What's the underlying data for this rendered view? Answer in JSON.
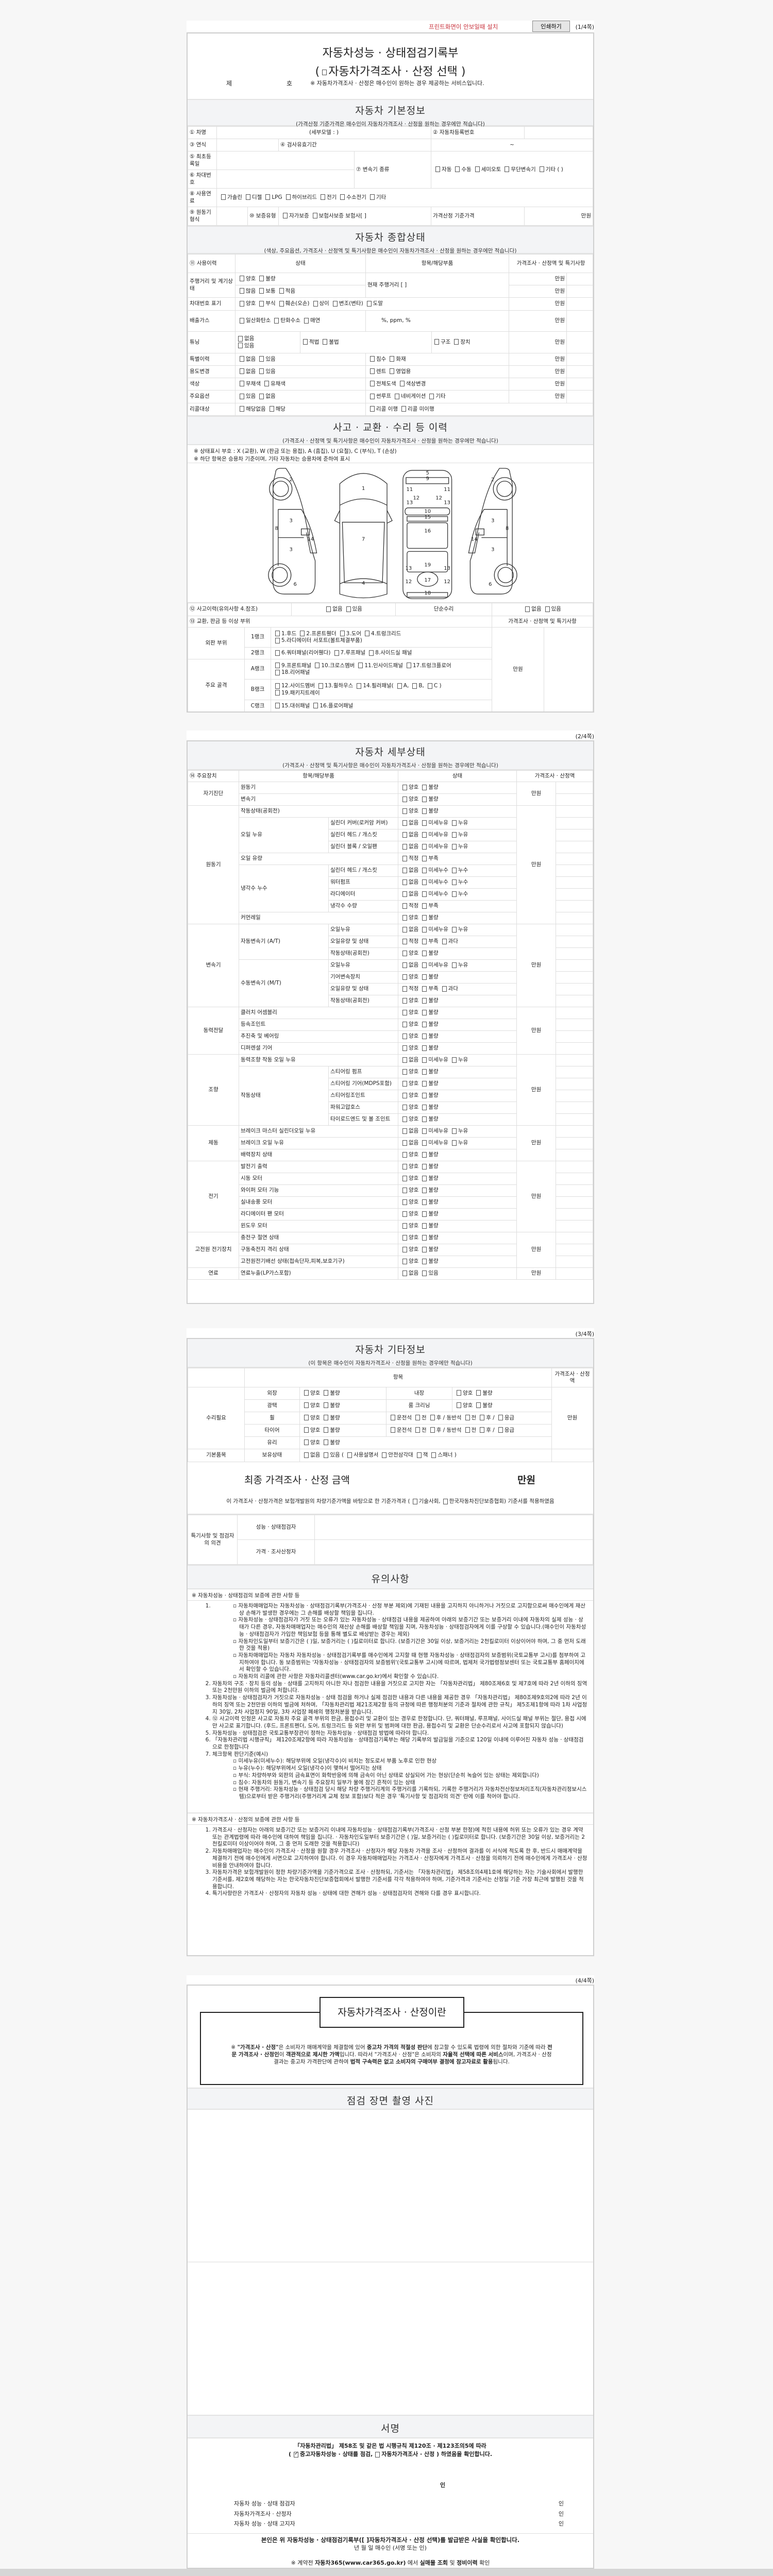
{
  "toolbar": {
    "notice": "프린트화면이 안보일때 설치",
    "print_button": "인쇄하기",
    "page": "(1/4쪽)"
  },
  "colors": {
    "notice": "#c8323c",
    "section_bg": "#f3f4f6",
    "border": "#cfcfcf"
  },
  "option_sets": {
    "good_bad": [
      "양호",
      "불량"
    ],
    "leak_oil": [
      "없음",
      "미세누유",
      "누유"
    ],
    "leak_water": [
      "없음",
      "미세누수",
      "누수"
    ],
    "level": [
      "적정",
      "부족"
    ],
    "level3": [
      "적정",
      "부족",
      "과다"
    ],
    "none_some": [
      "없음",
      "있음"
    ]
  },
  "header": {
    "title": "자동차성능 · 상태점검기록부",
    "subtitle_open": "(",
    "subtitle": "자동차가격조사 · 산정 선택",
    "subtitle_close": ")",
    "no_prefix": "제",
    "no_suffix": "호",
    "note": "※ 자동차가격조사 · 산정은 매수인이 원하는 경우 제공하는 서비스입니다."
  },
  "basic": {
    "title": "자동차 기본정보",
    "sub": "(가격산정 기준가격은 매수인이 자동차가격조사 · 산정을 원하는 경우에만 적습니다)",
    "car_name": "① 차명",
    "sub_model": "(세부모델 :                    )",
    "reg_no": "② 자동차등록번호",
    "year": "③ 연식",
    "inspection": "④ 검사유효기간",
    "inspection_range": "~",
    "first_reg": "⑤ 최초등록일",
    "vin": "⑥ 차대번호",
    "transmission": "⑦ 변속기 종류",
    "transmission_opts": [
      "자동",
      "수동",
      "세미오토",
      "무단변속기",
      "기타 (          )"
    ],
    "fuel": "⑧ 사용연료",
    "fuel_opts": [
      "가솔린",
      "디젤",
      "LPG",
      "하이브리드",
      "전기",
      "수소전기",
      "기타"
    ],
    "engine": "⑨ 원동기형식",
    "warranty": "⑩ 보증유형",
    "warranty_opts": [
      "자가보증",
      "보험사보증 보험사[                ]"
    ],
    "base_price": "가격산정 기준가격",
    "unit": "만원"
  },
  "overall": {
    "title": "자동차 종합상태",
    "sub": "(색상, 주요옵션, 가격조사 · 산정액 및 특기사항은 매수인이 자동차가격조사 · 산정을 원하는 경우에만 적습니다)",
    "cols": [
      "⑪ 사용이력",
      "상태",
      "항목/해당부품",
      "가격조사 · 산정액 및 특기사항"
    ],
    "unit": "만원",
    "mileage": {
      "label": "주행거리 및 계기상태",
      "opts1": [
        "양호",
        "불량"
      ],
      "opts2": [
        "많음",
        "보통",
        "적음"
      ],
      "item": "현재 주행거리 [                    ]"
    },
    "vin_mark": {
      "label": "차대번호 표기",
      "opts": [
        "양호",
        "부식",
        "훼손(오손)",
        "상이",
        "변조(변타)",
        "도말"
      ]
    },
    "emission": {
      "label": "배출가스",
      "opts": [
        "일산화탄소",
        "탄화수소",
        "매연"
      ],
      "item": "%,        ppm,        %"
    },
    "tuning": {
      "label": "튜닝",
      "opts1": [
        "없음",
        "있음"
      ],
      "opts2": [
        "적법",
        "불법"
      ],
      "opts3": [
        "구조",
        "장치"
      ]
    },
    "special": {
      "label": "특별이력",
      "opts1": [
        "없음",
        "있음"
      ],
      "opts2": [
        "침수",
        "화재"
      ]
    },
    "usage": {
      "label": "용도변경",
      "opts1": [
        "없음",
        "있음"
      ],
      "opts2": [
        "렌트",
        "영업용"
      ]
    },
    "color": {
      "label": "색상",
      "opts1": [
        "무채색",
        "유채색"
      ],
      "opts2": [
        "전체도색",
        "색상변경"
      ]
    },
    "options": {
      "label": "주요옵션",
      "opts1": [
        "있음",
        "없음"
      ],
      "opts2": [
        "썬루프",
        "네비게이션",
        "기타"
      ]
    },
    "recall": {
      "label": "리콜대상",
      "opts1": [
        "해당없음",
        "해당"
      ],
      "opts2": [
        "리콜 이행",
        "리콜 미이행"
      ]
    }
  },
  "accident": {
    "title": "사고 · 교환 · 수리 등 이력",
    "sub": "(가격조사 · 산정액 및 특기사항은 매수인이 자동차가격조사 · 산정을 원하는 경우에만 적습니다)",
    "notes": [
      "※ 상태표시 부호 : X (교환), W (판금 또는 용접), A (흠집), U (요철), C (부식), T (손상)",
      "※ 하단 항목은 승용차 기준이며, 기타 자동차는 승용차에 준하여 표시"
    ],
    "diagram_labels": [
      "2",
      "3",
      "8",
      "14",
      "3",
      "6",
      "1",
      "7",
      "4",
      "5",
      "9",
      "11",
      "11",
      "12",
      "12",
      "13",
      "13",
      "10",
      "15",
      "16",
      "19",
      "13",
      "13",
      "17",
      "12",
      "12",
      "18",
      "2",
      "3",
      "8",
      "14",
      "3",
      "6"
    ],
    "history": "⑫ 사고이력(유의사항 4.참조)",
    "history_opts": [
      "없음",
      "있음"
    ],
    "simple": "단순수리",
    "simple_opts": [
      "없음",
      "있음"
    ],
    "parts": "⑬ 교환, 판금 등 이상 부위",
    "price_col": "가격조사 · 산정액 및 특기사항",
    "unit": "만원",
    "outer": "외판 부위",
    "frame": "주요 골격",
    "ranks": [
      {
        "name": "1랭크",
        "opts": [
          "1.후드",
          "2.프론트휀더",
          "3.도어",
          "4.트렁크리드",
          "5.라디에이터 서포트(볼트체결부품)"
        ]
      },
      {
        "name": "2랭크",
        "opts": [
          "6.쿼터패널(리어휀다)",
          "7.루프패널",
          "8.사이드실 패널"
        ]
      },
      {
        "name": "A랭크",
        "opts": [
          "9.프론트패널",
          "10.크로스멤버",
          "11.인사이드패널",
          "17.트렁크플로어",
          "18.리어패널"
        ]
      },
      {
        "name": "B랭크",
        "opts": [
          "12.사이드멤버",
          "13.휠하우스",
          "14.필러패널(",
          "A,",
          "B,",
          "C )",
          "19.패키지트레이"
        ]
      },
      {
        "name": "C랭크",
        "opts": [
          "15.대쉬패널",
          "16.플로어패널"
        ]
      }
    ]
  },
  "detail": {
    "page": "(2/4쪽)",
    "title": "자동차 세부상태",
    "sub": "(가격조사 · 산정액 및 특기사항은 매수인이 자동차가격조사 · 산정을 원하는 경우에만 적습니다)",
    "cols": [
      "⑭ 주요장치",
      "항목/해당부품",
      "상태",
      "가격조사 · 산정액"
    ],
    "unit": "만원",
    "groups": [
      {
        "name": "자기진단",
        "items": [
          {
            "name": "원동기",
            "opts": "good_bad"
          },
          {
            "name": "변속기",
            "opts": "good_bad"
          }
        ]
      },
      {
        "name": "원동기",
        "items": [
          {
            "name": "작동상태(공회전)",
            "opts": "good_bad"
          },
          {
            "name": "오일 누유",
            "subs": [
              {
                "name": "실린더 커버(로커암 커버)",
                "opts": "leak_oil"
              },
              {
                "name": "실린더 헤드 / 개스킷",
                "opts": "leak_oil"
              },
              {
                "name": "실린더 블록 / 오일팬",
                "opts": "leak_oil"
              }
            ]
          },
          {
            "name": "오일 유량",
            "opts": "level"
          },
          {
            "name": "냉각수 누수",
            "subs": [
              {
                "name": "실린더 헤드 / 개스킷",
                "opts": "leak_water"
              },
              {
                "name": "워터펌프",
                "opts": "leak_water"
              },
              {
                "name": "라디에이터",
                "opts": "leak_water"
              },
              {
                "name": "냉각수 수량",
                "opts": "level"
              }
            ]
          },
          {
            "name": "커먼레일",
            "opts": "good_bad"
          }
        ]
      },
      {
        "name": "변속기",
        "items": [
          {
            "name": "자동변속기 (A/T)",
            "subs": [
              {
                "name": "오일누유",
                "opts": "leak_oil"
              },
              {
                "name": "오일유량 및 상태",
                "opts": "level3"
              },
              {
                "name": "작동상태(공회전)",
                "opts": "good_bad"
              }
            ]
          },
          {
            "name": "수동변속기 (M/T)",
            "subs": [
              {
                "name": "오일누유",
                "opts": "leak_oil"
              },
              {
                "name": "기어변속장치",
                "opts": "good_bad"
              },
              {
                "name": "오일유량 및 상태",
                "opts": "level3"
              },
              {
                "name": "작동상태(공회전)",
                "opts": "good_bad"
              }
            ]
          }
        ]
      },
      {
        "name": "동력전달",
        "items": [
          {
            "name": "클러치 어셈블리",
            "opts": "good_bad"
          },
          {
            "name": "등속조인트",
            "opts": "good_bad"
          },
          {
            "name": "추진축 및 베어링",
            "opts": "good_bad"
          },
          {
            "name": "디퍼렌셜 기어",
            "opts": "good_bad"
          }
        ]
      },
      {
        "name": "조향",
        "items": [
          {
            "name": "동력조향 작동 오일 누유",
            "opts": "leak_oil"
          },
          {
            "name": "작동상태",
            "subs": [
              {
                "name": "스티어링 펌프",
                "opts": "good_bad"
              },
              {
                "name": "스티어링 기어(MDPS포함)",
                "opts": "good_bad"
              },
              {
                "name": "스티어링조인트",
                "opts": "good_bad"
              },
              {
                "name": "파워고압호스",
                "opts": "good_bad"
              },
              {
                "name": "타이로드엔드 및 볼 조인트",
                "opts": "good_bad"
              }
            ]
          }
        ]
      },
      {
        "name": "제동",
        "items": [
          {
            "name": "브레이크 마스터 실린더오일 누유",
            "opts": "leak_oil"
          },
          {
            "name": "브레이크 오일 누유",
            "opts": "leak_oil"
          },
          {
            "name": "배력장치 상태",
            "opts": "good_bad"
          }
        ]
      },
      {
        "name": "전기",
        "items": [
          {
            "name": "발전기 출력",
            "opts": "good_bad"
          },
          {
            "name": "시동 모터",
            "opts": "good_bad"
          },
          {
            "name": "와이퍼 모터 기능",
            "opts": "good_bad"
          },
          {
            "name": "실내송풍 모터",
            "opts": "good_bad"
          },
          {
            "name": "라디에이터 팬 모터",
            "opts": "good_bad"
          },
          {
            "name": "윈도우 모터",
            "opts": "good_bad"
          }
        ]
      },
      {
        "name": "고전원 전기장치",
        "items": [
          {
            "name": "충전구 절연 상태",
            "opts": "good_bad"
          },
          {
            "name": "구동축전지 격리 상태",
            "opts": "good_bad"
          },
          {
            "name": "고전원전기배선 상태(접속단자,피복,보호기구)",
            "opts": "good_bad"
          }
        ]
      },
      {
        "name": "연료",
        "items": [
          {
            "name": "연료누출(LP가스포함)",
            "opts": "none_some"
          }
        ]
      }
    ]
  },
  "other": {
    "page": "(3/4쪽)",
    "title": "자동차 기타정보",
    "sub": "(이 항목은 매수인이 자동차가격조사 · 산정을 원하는 경우에만 적습니다)",
    "item_col": "항목",
    "price_col": "가격조사 · 산정액",
    "unit": "만원",
    "repair": "수리필요",
    "exterior": "외장",
    "interior": "내장",
    "gloss": "광택",
    "cleaning": "룸 크리닝",
    "wheel": "휠",
    "tire": "타이어",
    "glass": "유리",
    "seat_opts": [
      "운전석",
      "전",
      "후 / 동반석",
      "전",
      "후 /",
      "응급"
    ],
    "basic_items": "기본품목",
    "holding": "보유상태",
    "holding_opts": [
      "없음",
      "있음 (",
      "사용설명서",
      "안전삼각대",
      "잭",
      "스패너 )"
    ],
    "final_label": "최종 가격조사 · 산정 금액",
    "final_unit": "만원",
    "basis_pre": "이 가격조사 · 산정가격은 보험개발원의 차량기준가액을 바탕으로 한 기준가격과 (",
    "basis_opt1": "기술사회,",
    "basis_opt2": "한국자동차진단보증협회) 기준서를 적용하였음",
    "remarks": "특기사항 및 점검자의 의견",
    "inspector": "성능 · 상태점검자",
    "appraiser": "가격 · 조사산정자",
    "caution_title": "유의사항",
    "sec1": "※ 자동차성능 · 상태점검의 보증에 관한 사항 등",
    "sec1_items": [
      {
        "text": "",
        "bullets": [
          "자동차매매업자는 자동차성능 · 상태점검기록부(가격조사 · 산정 부분 제외)에 기재된 내용을 고지하지 아니하거나 거짓으로 고지함으로써 매수인에게 재산상 손해가 발생한 경우에는 그 손해를 배상할 책임을 집니다.",
          "자동차성능 · 상태점검자가 거짓 또는 오류가 있는 자동차성능 · 상태점검 내용을 제공하여 아래의 보증기간 또는 보증거리 이내에 자동차의 실제 성능 · 상태가 다른 경우, 자동차매매업자는 매수인의 재산상 손해를 배상할 책임을 지며, 자동차성능 · 상태점검자에게 이를 구상할 수 있습니다.(매수인이 자동차성능 · 상태점검자가 가입한 책임보험 등을 통해 별도로 배상받는 경우는 제외)",
          "자동차인도일부터 보증기간은 (      )일, 보증거리는 (      )킬로미터로 합니다. (보증기간은 30일 이상, 보증거리는 2천킬로미터 이상이어야 하며, 그 중 먼저 도래한 것을 적용)",
          "자동차매매업자는 자동차 자동차성능 · 상태점검기록부를 매수인에게 고지할 때 현행 자동차성능 · 상태점검자의 보증범위(국토교통부 고시)를 첨부하여 고지하여야 합니다. 동 보증범위는 '자동차성능 · 상태점검자의 보증범위'(국토교통부 고시)에 따르며, 법제처 국가법령정보센터 또는 국토교통부 홈페이지에서 확인할 수 있습니다.",
          "자동차의 리콜에 관한 사항은 자동차리콜센터(www.car.go.kr)에서 확인할 수 있습니다."
        ]
      },
      {
        "text": "자동차의 구조 · 장치 등의 성능 · 상태를 고지하지 아니한 자나 점검한 내용을 거짓으로 고지한 자는 「자동차관리법」 제80조제6호 및 제7호에 따라 2년 이하의 징역 또는 2천만원 이하의 벌금에 처합니다.",
        "bullets": []
      },
      {
        "text": "자동차성능 · 상태점검자가 거짓으로 자동차성능 · 상태 점검을 하거나 실제 점검한 내용과 다른 내용을 제공한 경우 「자동차관리법」 제80조제9호의2에 따라 2년 이하의 징역 또는 2천만원 이하의 벌금에 처하며, 「자동차관리법 제21조제2항 등의 규정에 따른 행정처분의 기준과 절차에 관한 규칙」 제5조제1항에 따라 1차 사업정지 30일, 2차 사업정지 90일, 3차 사업장 폐쇄의 행정처분을 받습니다.",
        "bullets": []
      },
      {
        "text": "⑫ 사고이력 인정은 사고로 자동차 주요 골격 부위의 판금, 용접수리 및 교환이 있는 경우로 한정합니다. 단, 쿼터패널, 루프패널, 사이드실 패널 부위는 절단, 용접 시에만 사고로 표기합니다. (후드, 프론트펜더, 도어, 트렁크리드 등 외판 부위 및 범퍼에 대한 판금, 용접수리 및 교환은 단순수리로서 사고에 포함되지 않습니다)",
        "bullets": []
      },
      {
        "text": "자동차성능 · 상태점검은 국토교통부장관이 정하는 자동차성능 · 상태점검 방법에 따라야 합니다.",
        "bullets": []
      },
      {
        "text": "「자동차관리법 시행규칙」 제120조제2항에 따라 자동차성능 · 상태점검기록부는 해당 기록부의 발급일을 기준으로 120일 이내에 이루어진 자동차 성능 · 상태점검으로 한정합니다",
        "bullets": []
      },
      {
        "text": "체크항목 판단기준(예시)",
        "bullets": [
          "미세누유(미세누수): 해당부위에 오일(냉각수)이 비치는 정도로서 부품 노후로 인한 현상",
          "누유(누수): 해당부위에서 오일(냉각수)이 맺혀서 떨어지는 상태",
          "부식: 차량하부와 외판의 금속표면이 화학반응에 의해 금속이 아닌 상태로 상실되어 가는 현상(단순히 녹슬어 있는 상태는 제외합니다)",
          "침수: 자동차의 원동기, 변속기 등 주요장치 일부가 물에 잠긴 흔적이 있는 상태",
          "현재 주행거리: 자동차성능 · 상태점검 당시 해당 차량 주행거리계의 주행거리를 기록하되, 기록한 주행거리가 자동차전산정보처리조직(자동차관리정보시스템)으로부터 받은 주행거리(주행거리계 교체 정보 포함)보다 적은 경우 '특기사항 및 점검자의 의견' 란에 이를 적어야 합니다."
        ]
      }
    ],
    "sec2": "※ 자동차가격조사 · 산정의 보증에 관한 사항 등",
    "sec2_items": [
      "가격조사 · 산정자는 아래의 보증기간 또는 보증거리 이내에 자동차성능 · 상태점검기록부(가격조사 · 산정 부분 한정)에 적힌 내용에 허위 또는 오류가 있는 경우 계약 또는 관계법령에 따라 매수인에 대하여 책임을 집니다.  ·  자동차인도일부터 보증기간은 (      )일, 보증거리는 (      )킬로미터로 합니다. (보증기간은 30일 이상, 보증거리는 2천킬로미터 이상이어야 하며, 그 중 먼저 도래한 것을 적용합니다)",
      "자동차매매업자는 매수인이 가격조사 · 산정을 원할 경우 가격조사 · 산정자가 해당 자동차 가격을 조사 · 산정하여 결과를 이 서식에 적도록 한 후, 반드시 매매계약을 체결하기 전에 매수인에게 서면으로 고지하여야 합니다. 이 경우 자동차매매업자는 가격조사 · 산정자에게 가격조사 · 산정을 의뢰하기 전에 매수인에게 가격조사 · 산정 비용을 안내하여야 합니다.",
      "자동차가격은 보험개발원이 정한 차량기준가액을 기준가격으로 조사 · 산정하되, 기준서는 「자동차관리법」 제58조의4제1호에 해당하는 자는 기술사회에서 발행한 기준서를, 제2호에 해당하는 자는 한국자동차진단보증협회에서 발행한 기준서를 각각 적용하여야 하며, 기준가격과 기준서는 산정일 기준 가장 최근에 발행된 것을 적용합니다.",
      "특기사항란은 가격조사 · 산정자의 자동차 성능 · 상태에 대한 견해가 성능 · 상태점검자의 견해와 다를 경우 표시합니다."
    ]
  },
  "final": {
    "page": "(4/4쪽)",
    "box_title": "자동차가격조사 · 산정이란",
    "box_text": [
      {
        "t": "※ ",
        "b": false
      },
      {
        "t": "\"가격조사 · 산정\"",
        "b": true
      },
      {
        "t": "은 소비자가 매매계약을 체결함에 있어 ",
        "b": false
      },
      {
        "t": "중고차 가격의 적절성 판단",
        "b": true
      },
      {
        "t": "에 참고할 수 있도록 법령에 의한 절차와 기준에 따라 ",
        "b": false
      },
      {
        "t": "전문 가격조사 · 산정인",
        "b": true
      },
      {
        "t": "이 ",
        "b": false
      },
      {
        "t": "객관적으로 제시한 가액",
        "b": true
      },
      {
        "t": "입니다. 따라서 \"가격조사 · 산정\"은 소비자의 ",
        "b": false
      },
      {
        "t": "자율적 선택에 따른 서비스",
        "b": true
      },
      {
        "t": "이며, 가격조사 · 산정 결과는 중고차 가격판단에 관하여 ",
        "b": false
      },
      {
        "t": "법적 구속력은 없고 소비자의 구매여부 결정에 참고자료로 활용",
        "b": true
      },
      {
        "t": "됩니다.",
        "b": false
      }
    ],
    "photo_title": "점검 장면 촬영 사진",
    "sign_title": "서명",
    "law": "「자동차관리법」 제58조 및 같은 법 시행규칙 제120조 · 제123조의5에 따라",
    "confirm_pre": "(",
    "confirm_opt1": "중고자동차성능 · 상태를 점검,",
    "confirm_opt2": "자동차가격조사 · 산정 ) 하였음을 확인합니다.",
    "seal": "인",
    "signers": [
      {
        "label": "자동차 성능 · 상태 점검자",
        "seal": "인"
      },
      {
        "label": "자동차가격조사 · 산정자",
        "seal": "인"
      },
      {
        "label": "자동차 성능 · 상태 고지자",
        "seal": "인"
      }
    ],
    "receipt": "본인은 위 자동차성능 · 상태점검기록부([   ]자동차가격조사 · 산정 선택)를 발급받은 사실을 확인합니다.",
    "date_line": "년    월    일      매수인                    (서명 또는 인)",
    "car365": [
      {
        "t": "※ 계약전 ",
        "b": false
      },
      {
        "t": "자동차365(www.car365.go.kr)",
        "b": true
      },
      {
        "t": " 에서 ",
        "b": false
      },
      {
        "t": "실매물 조회",
        "b": true
      },
      {
        "t": " 및 ",
        "b": false
      },
      {
        "t": "정비이력",
        "b": true
      },
      {
        "t": " 확인",
        "b": false
      }
    ]
  }
}
